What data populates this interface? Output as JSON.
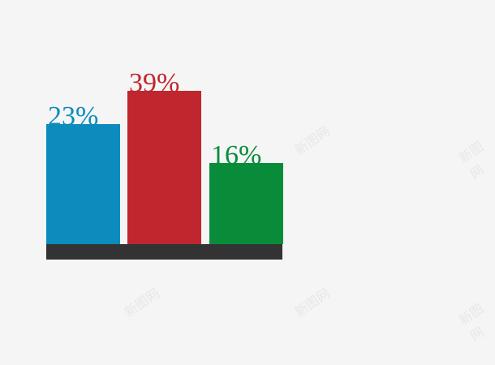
{
  "chart_data": {
    "type": "bar",
    "categories": [
      "",
      "",
      ""
    ],
    "values": [
      23,
      39,
      16
    ],
    "data_labels": [
      "23%",
      "39%",
      "16%"
    ],
    "colors": [
      "#0b8cbd",
      "#c0262d",
      "#088c3a"
    ],
    "baseline_color": "#333333",
    "title": "",
    "xlabel": "",
    "ylabel": "",
    "grid": false,
    "legend": "none"
  },
  "watermark": "新图网"
}
